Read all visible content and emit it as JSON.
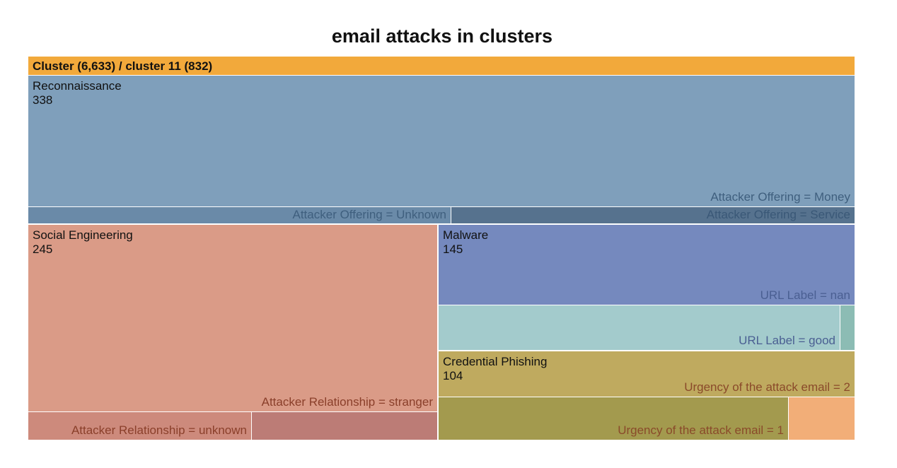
{
  "chart_data": {
    "type": "treemap",
    "title": "email attacks in clusters",
    "root": {
      "label": "Cluster (6,633) / cluster 11 (832)",
      "value": 832,
      "color": "#f2a93b"
    },
    "groups": [
      {
        "id": "reconnaissance",
        "name": "Reconnaissance",
        "value_label": "338",
        "value": 338,
        "color": "#7f9fbb",
        "children": [
          {
            "label": "Attacker Offering = Money",
            "color": "#7f9fbb"
          },
          {
            "label": "Attacker Offering = Unknown",
            "color": "#6a8aa8"
          },
          {
            "label": "Attacker Offering = Service",
            "color": "#56728e"
          }
        ]
      },
      {
        "id": "social-engineering",
        "name": "Social Engineering",
        "value_label": "245",
        "value": 245,
        "color": "#da9b87",
        "children": [
          {
            "label": "Attacker Relationship = stranger",
            "color": "#da9b87"
          },
          {
            "label": "Attacker Relationship = unknown",
            "color": "#cd8a7c"
          },
          {
            "label": "",
            "color": "#bc7c76"
          }
        ]
      },
      {
        "id": "malware",
        "name": "Malware",
        "value_label": "145",
        "value": 145,
        "color": "#7589be",
        "children": [
          {
            "label": "URL Label = nan",
            "color": "#7589be"
          },
          {
            "label": "URL Label = good",
            "color": "#a3cbcc"
          },
          {
            "label": "",
            "color": "#8cbcb4"
          }
        ]
      },
      {
        "id": "credential-phishing",
        "name": "Credential Phishing",
        "value_label": "104",
        "value": 104,
        "color": "#bfaa5f",
        "children": [
          {
            "label": "Urgency of the attack email = 2",
            "color": "#bfaa5f"
          },
          {
            "label": "Urgency of the attack email = 1",
            "color": "#a39a4e"
          },
          {
            "label": "",
            "color": "#f2ae78"
          }
        ]
      }
    ]
  }
}
